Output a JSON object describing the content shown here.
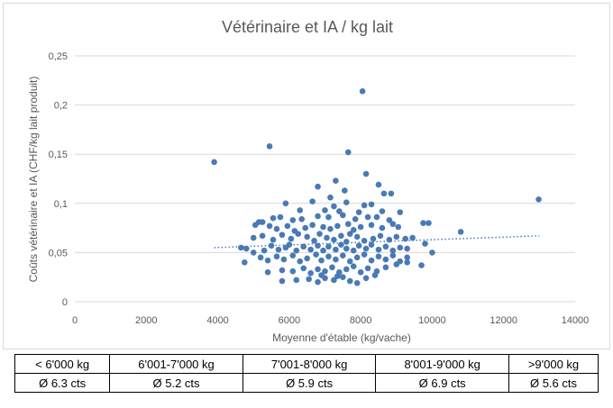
{
  "chart_data": {
    "type": "scatter",
    "title": "Vétérinaire et IA / kg lait",
    "xlabel": "Moyenne d'étable (kg/vache)",
    "ylabel": "Coûts vétérinaire et IA (CHF/kg lait produit)",
    "xlim": [
      0,
      14000
    ],
    "ylim": [
      0,
      0.25
    ],
    "x_ticks": [
      "0",
      "2000",
      "4000",
      "6000",
      "8000",
      "10000",
      "12000",
      "14000"
    ],
    "y_ticks": [
      "0",
      "0,05",
      "0,1",
      "0,15",
      "0,2",
      "0,25"
    ],
    "grid": "horizontal",
    "legend": "none",
    "marker_color": "#4a7ab5",
    "trendline": {
      "style": "dotted",
      "color": "#4a7ab5",
      "x": [
        3900,
        13000
      ],
      "y": [
        0.055,
        0.067
      ]
    },
    "points": [
      [
        3900,
        0.142
      ],
      [
        5450,
        0.158
      ],
      [
        7650,
        0.152
      ],
      [
        8050,
        0.214
      ],
      [
        12980,
        0.104
      ],
      [
        10800,
        0.071
      ],
      [
        8150,
        0.13
      ],
      [
        7300,
        0.123
      ],
      [
        8500,
        0.119
      ],
      [
        6800,
        0.117
      ],
      [
        7550,
        0.113
      ],
      [
        8650,
        0.11
      ],
      [
        8850,
        0.11
      ],
      [
        6650,
        0.102
      ],
      [
        7150,
        0.106
      ],
      [
        7600,
        0.101
      ],
      [
        5900,
        0.1
      ],
      [
        6300,
        0.093
      ],
      [
        7250,
        0.097
      ],
      [
        8100,
        0.098
      ],
      [
        8300,
        0.099
      ],
      [
        7000,
        0.093
      ],
      [
        7400,
        0.092
      ],
      [
        7950,
        0.091
      ],
      [
        8600,
        0.092
      ],
      [
        9100,
        0.091
      ],
      [
        5250,
        0.081
      ],
      [
        5550,
        0.085
      ],
      [
        5750,
        0.086
      ],
      [
        6100,
        0.083
      ],
      [
        6350,
        0.084
      ],
      [
        6800,
        0.087
      ],
      [
        7100,
        0.086
      ],
      [
        7500,
        0.088
      ],
      [
        7850,
        0.084
      ],
      [
        8200,
        0.086
      ],
      [
        8450,
        0.086
      ],
      [
        8800,
        0.083
      ],
      [
        9750,
        0.08
      ],
      [
        9900,
        0.08
      ],
      [
        5050,
        0.078
      ],
      [
        5150,
        0.081
      ],
      [
        5450,
        0.077
      ],
      [
        5650,
        0.074
      ],
      [
        5950,
        0.077
      ],
      [
        6150,
        0.072
      ],
      [
        6450,
        0.075
      ],
      [
        6650,
        0.078
      ],
      [
        6950,
        0.076
      ],
      [
        7150,
        0.074
      ],
      [
        7350,
        0.077
      ],
      [
        7650,
        0.079
      ],
      [
        7800,
        0.073
      ],
      [
        8000,
        0.076
      ],
      [
        8300,
        0.078
      ],
      [
        8600,
        0.075
      ],
      [
        8900,
        0.079
      ],
      [
        9050,
        0.076
      ],
      [
        5000,
        0.065
      ],
      [
        5250,
        0.067
      ],
      [
        5550,
        0.063
      ],
      [
        5800,
        0.068
      ],
      [
        6050,
        0.064
      ],
      [
        6250,
        0.069
      ],
      [
        6500,
        0.066
      ],
      [
        6700,
        0.062
      ],
      [
        6850,
        0.069
      ],
      [
        7050,
        0.065
      ],
      [
        7250,
        0.063
      ],
      [
        7450,
        0.067
      ],
      [
        7600,
        0.061
      ],
      [
        7700,
        0.069
      ],
      [
        7900,
        0.066
      ],
      [
        8100,
        0.062
      ],
      [
        8350,
        0.064
      ],
      [
        8550,
        0.067
      ],
      [
        8800,
        0.063
      ],
      [
        9000,
        0.066
      ],
      [
        9250,
        0.064
      ],
      [
        9450,
        0.065
      ],
      [
        9800,
        0.059
      ],
      [
        4650,
        0.055
      ],
      [
        4800,
        0.054
      ],
      [
        5000,
        0.05
      ],
      [
        5300,
        0.052
      ],
      [
        5500,
        0.057
      ],
      [
        5700,
        0.053
      ],
      [
        5900,
        0.055
      ],
      [
        6000,
        0.058
      ],
      [
        6200,
        0.052
      ],
      [
        6400,
        0.056
      ],
      [
        6600,
        0.053
      ],
      [
        6800,
        0.057
      ],
      [
        6950,
        0.052
      ],
      [
        7100,
        0.056
      ],
      [
        7300,
        0.053
      ],
      [
        7450,
        0.058
      ],
      [
        7600,
        0.054
      ],
      [
        7800,
        0.052
      ],
      [
        7950,
        0.057
      ],
      [
        8150,
        0.054
      ],
      [
        8300,
        0.058
      ],
      [
        8500,
        0.053
      ],
      [
        8700,
        0.056
      ],
      [
        8900,
        0.052
      ],
      [
        9100,
        0.055
      ],
      [
        9300,
        0.054
      ],
      [
        10000,
        0.05
      ],
      [
        4750,
        0.04
      ],
      [
        5200,
        0.045
      ],
      [
        5400,
        0.042
      ],
      [
        5650,
        0.046
      ],
      [
        5850,
        0.043
      ],
      [
        6100,
        0.047
      ],
      [
        6300,
        0.041
      ],
      [
        6500,
        0.044
      ],
      [
        6750,
        0.048
      ],
      [
        6900,
        0.042
      ],
      [
        7100,
        0.046
      ],
      [
        7300,
        0.043
      ],
      [
        7500,
        0.047
      ],
      [
        7700,
        0.041
      ],
      [
        7900,
        0.045
      ],
      [
        8100,
        0.048
      ],
      [
        8300,
        0.042
      ],
      [
        8500,
        0.046
      ],
      [
        8700,
        0.043
      ],
      [
        8900,
        0.047
      ],
      [
        9100,
        0.041
      ],
      [
        9300,
        0.045
      ],
      [
        9700,
        0.037
      ],
      [
        5400,
        0.03
      ],
      [
        5800,
        0.032
      ],
      [
        6100,
        0.031
      ],
      [
        6400,
        0.034
      ],
      [
        6600,
        0.029
      ],
      [
        6800,
        0.033
      ],
      [
        7000,
        0.031
      ],
      [
        7200,
        0.035
      ],
      [
        7400,
        0.03
      ],
      [
        7600,
        0.033
      ],
      [
        7800,
        0.036
      ],
      [
        8000,
        0.03
      ],
      [
        8200,
        0.034
      ],
      [
        8450,
        0.031
      ],
      [
        8700,
        0.035
      ],
      [
        9000,
        0.038
      ],
      [
        9300,
        0.04
      ],
      [
        5800,
        0.021
      ],
      [
        6200,
        0.022
      ],
      [
        6550,
        0.023
      ],
      [
        6800,
        0.02
      ],
      [
        7000,
        0.024
      ],
      [
        7250,
        0.022
      ],
      [
        7500,
        0.025
      ],
      [
        7700,
        0.021
      ],
      [
        7900,
        0.019
      ],
      [
        8150,
        0.024
      ],
      [
        8400,
        0.027
      ],
      [
        7350,
        0.026
      ],
      [
        6900,
        0.027
      ]
    ]
  },
  "table": {
    "header": [
      "< 6'000 kg",
      "6'001-7'000 kg",
      "7'001-8'000 kg",
      "8'001-9'000 kg",
      ">9'000 kg"
    ],
    "values": [
      "Ø 6.3 cts",
      "Ø 5.2 cts",
      "Ø 5.9 cts",
      "Ø 6.9 cts",
      "Ø 5.6 cts"
    ]
  }
}
